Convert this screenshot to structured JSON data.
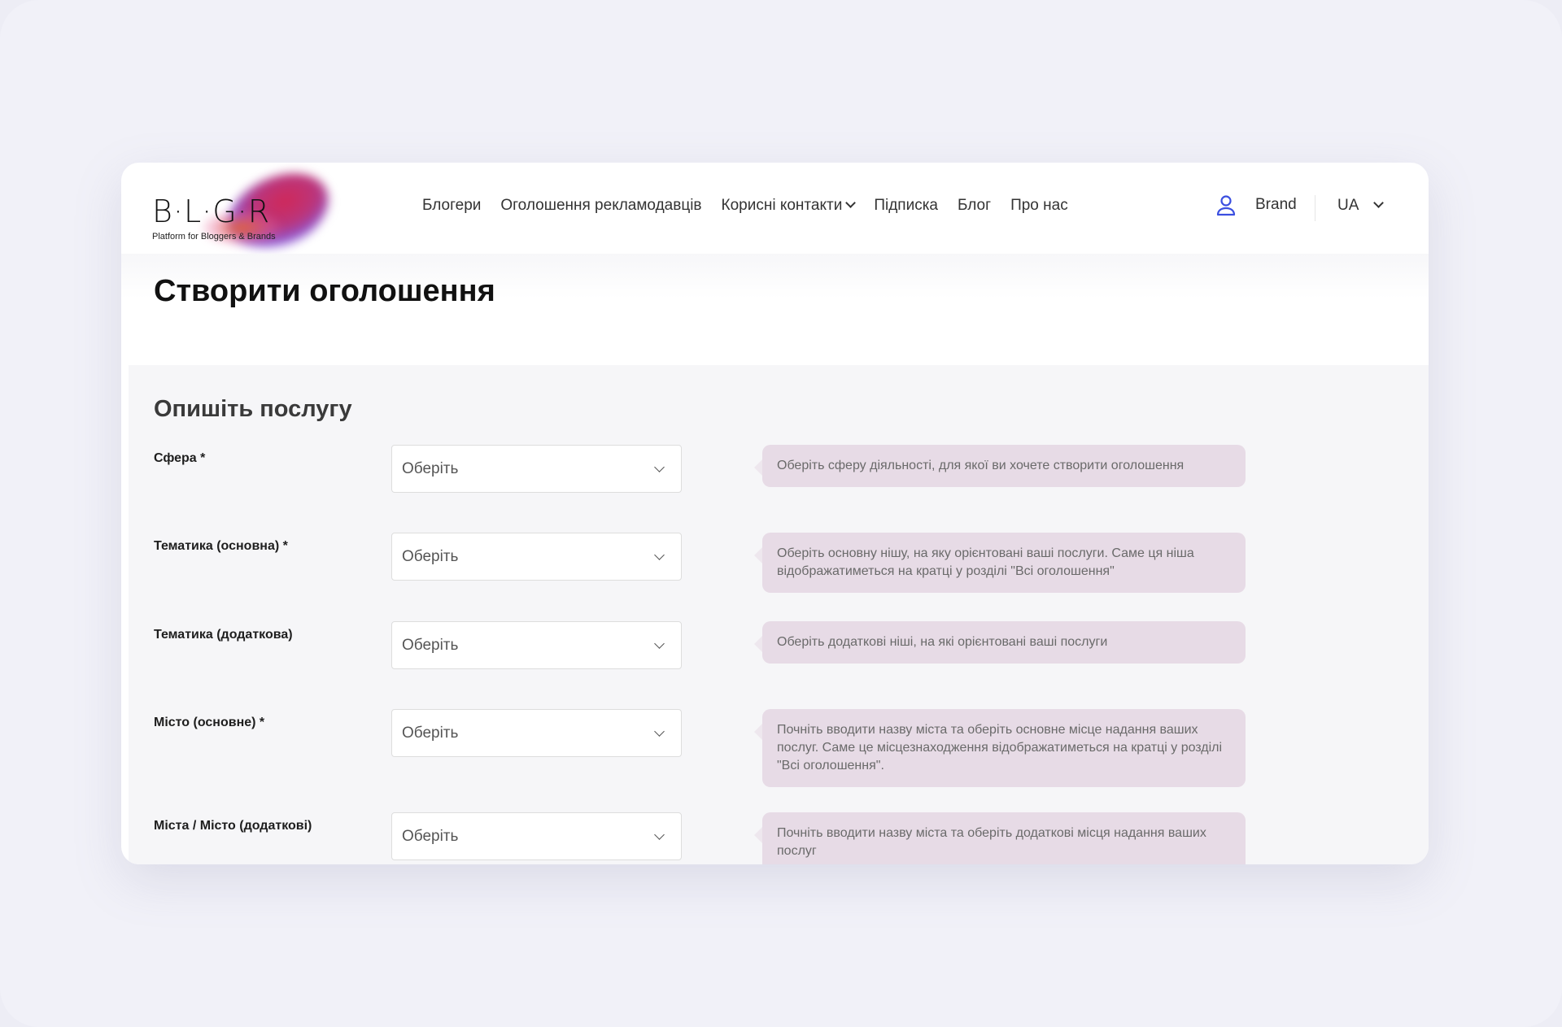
{
  "logo": {
    "text": "B·L·G·R",
    "subtitle": "Platform for Bloggers & Brands"
  },
  "nav": {
    "items": [
      "Блогери",
      "Оголошення рекламодавців",
      "Корисні контакти",
      "Підписка",
      "Блог",
      "Про нас"
    ]
  },
  "user": {
    "name": "Brand",
    "icon": "user-icon"
  },
  "language": {
    "selected": "UA"
  },
  "page": {
    "title": "Створити оголошення"
  },
  "form": {
    "section_title": "Опишіть послугу",
    "fields": [
      {
        "label": "Сфера *",
        "placeholder": "Оберіть",
        "hint": "Оберіть сферу діяльності, для якої ви хочете створити оголошення"
      },
      {
        "label": "Тематика (основна) *",
        "placeholder": "Оберіть",
        "hint": "Оберіть основну нішу, на яку орієнтовані ваші послуги. Саме ця ніша відображатиметься на кратці у розділі \"Всі оголошення\""
      },
      {
        "label": "Тематика (додаткова)",
        "placeholder": "Оберіть",
        "hint": "Оберіть додаткові ніші, на які орієнтовані ваші послуги"
      },
      {
        "label": "Місто (основне) *",
        "placeholder": "Оберіть",
        "hint": "Почніть вводити назву міста та оберіть основне місце надання ваших послуг. Саме це місцезнаходження відображатиметься на кратці у розділі \"Всі оголошення\"."
      },
      {
        "label": "Міста / Місто (додаткові)",
        "placeholder": "Оберіть",
        "hint": "Почніть вводити назву міста та оберіть додаткові місця надання ваших послуг"
      }
    ]
  },
  "colors": {
    "hint_bg": "#e7dbe6",
    "accent": "#3b4fe0"
  }
}
